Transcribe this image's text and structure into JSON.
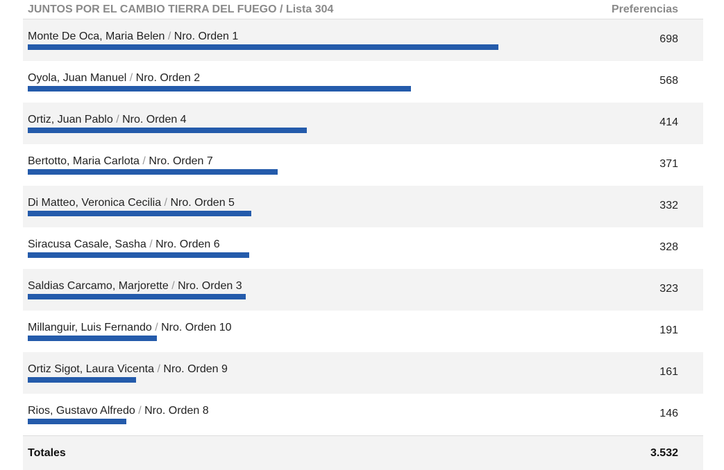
{
  "header": {
    "title": "JUNTOS POR EL CAMBIO TIERRA DEL FUEGO",
    "separator": "/",
    "list": "Lista 304",
    "column": "Preferencias"
  },
  "rows": [
    {
      "name": "Monte De Oca, Maria Belen",
      "order": "Nro. Orden 1",
      "votes": 698
    },
    {
      "name": "Oyola, Juan Manuel",
      "order": "Nro. Orden 2",
      "votes": 568
    },
    {
      "name": "Ortiz, Juan Pablo",
      "order": "Nro. Orden 4",
      "votes": 414
    },
    {
      "name": "Bertotto, Maria Carlota",
      "order": "Nro. Orden 7",
      "votes": 371
    },
    {
      "name": "Di Matteo, Veronica Cecilia",
      "order": "Nro. Orden 5",
      "votes": 332
    },
    {
      "name": "Siracusa Casale, Sasha",
      "order": "Nro. Orden 6",
      "votes": 328
    },
    {
      "name": "Saldias Carcamo, Marjorette",
      "order": "Nro. Orden 3",
      "votes": 323
    },
    {
      "name": "Millanguir, Luis Fernando",
      "order": "Nro. Orden 10",
      "votes": 191
    },
    {
      "name": "Ortiz Sigot, Laura Vicenta",
      "order": "Nro. Orden 9",
      "votes": 161
    },
    {
      "name": "Rios, Gustavo Alfredo",
      "order": "Nro. Orden 8",
      "votes": 146
    }
  ],
  "total": {
    "label": "Totales",
    "value": "3.532"
  }
}
